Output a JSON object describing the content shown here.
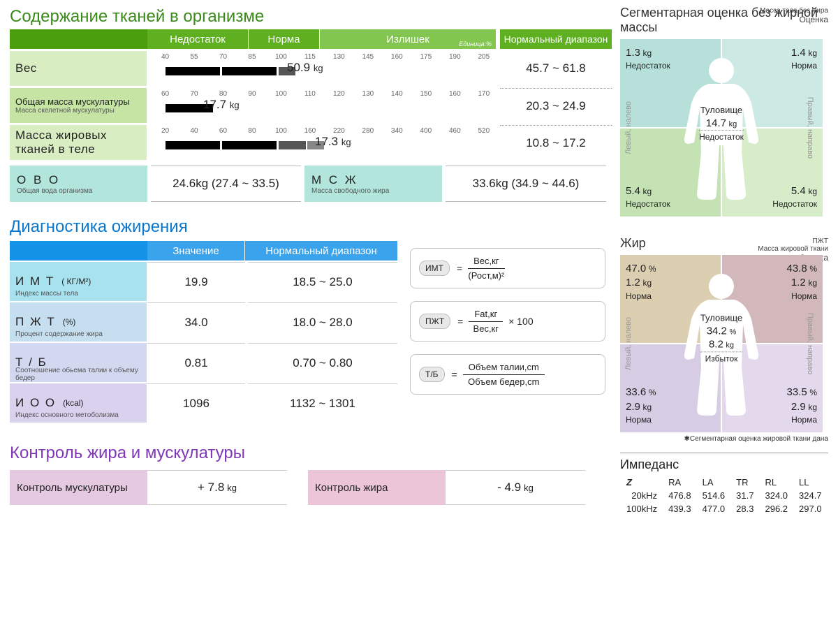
{
  "sec1": {
    "title": "Содержание тканей в организме",
    "hdr": {
      "deficit": "Недостаток",
      "norm": "Норма",
      "excess": "Излишек",
      "unit": "Единица:%",
      "range": "Нормальный диапазон"
    },
    "rows": [
      {
        "label": "Вес",
        "ticks": [
          "40",
          "55",
          "70",
          "85",
          "100",
          "115",
          "130",
          "145",
          "160",
          "175",
          "190",
          "205"
        ],
        "segs": [
          {
            "l": 0,
            "w": 16,
            "c": "#000"
          },
          {
            "l": 16.6,
            "w": 16,
            "c": "#000"
          },
          {
            "l": 33.2,
            "w": 5,
            "c": "#555"
          }
        ],
        "valPos": 40,
        "value": "50.9",
        "unit": "kg",
        "range": "45.7 ~ 61.8"
      },
      {
        "label": "Общая масса мускулатуры",
        "sublabel": "Масса скелетной мускулатуры",
        "ticks": [
          "60",
          "70",
          "80",
          "90",
          "100",
          "110",
          "120",
          "130",
          "140",
          "150",
          "160",
          "170"
        ],
        "segs": [
          {
            "l": 0,
            "w": 14,
            "c": "#000"
          }
        ],
        "valPos": 16,
        "value": "17.7",
        "unit": "kg",
        "range": "20.3 ~ 24.9"
      },
      {
        "label": "Масса жировых тканей в теле",
        "ticks": [
          "20",
          "40",
          "60",
          "80",
          "100",
          "160",
          "220",
          "280",
          "340",
          "400",
          "460",
          "520"
        ],
        "segs": [
          {
            "l": 0,
            "w": 16,
            "c": "#000"
          },
          {
            "l": 16.6,
            "w": 16,
            "c": "#000"
          },
          {
            "l": 33.2,
            "w": 8,
            "c": "#555"
          },
          {
            "l": 41.6,
            "w": 5,
            "c": "#888"
          }
        ],
        "valPos": 48,
        "value": "17.3",
        "unit": "kg",
        "range": "10.8 ~ 17.2"
      }
    ],
    "subs": [
      {
        "abbr": "О В О",
        "desc": "Общая вода организма",
        "value": "24.6kg (27.4 ~ 33.5)"
      },
      {
        "abbr": "М С Ж",
        "desc": "Масса свободного жира",
        "value": "33.6kg (34.9 ~ 44.6)"
      }
    ],
    "colors": {
      "label1": "#d8edc1",
      "label2": "#c6e5a5",
      "sub": "#b2e6dd"
    }
  },
  "sec2": {
    "title": "Диагностика ожирения",
    "hdr": {
      "v": "Значение",
      "r": "Нормальный диапазон"
    },
    "rows": [
      {
        "abbr": "И М Т",
        "unit": "( КГ/М²)",
        "desc": "Индекс массы тела",
        "v": "19.9",
        "r": "18.5 ~ 25.0",
        "bg": "#a8e2ef"
      },
      {
        "abbr": "П Ж Т",
        "unit": "(%)",
        "desc": "Процент содержание жира",
        "v": "34.0",
        "r": "18.0 ~ 28.0",
        "bg": "#c6dff0"
      },
      {
        "abbr": "Т / Б",
        "unit": "",
        "desc": "Соотношение обьема талии к объему бедер",
        "v": "0.81",
        "r": "0.70 ~ 0.80",
        "bg": "#d2d8f0"
      },
      {
        "abbr": "И О О",
        "unit": "(kcal)",
        "desc": "Индекс основного метоболизма",
        "v": "1096",
        "r": "1132 ~ 1301",
        "bg": "#d9d2ef"
      }
    ],
    "formulas": [
      {
        "lbl": "ИМТ",
        "top": "Вес,кг",
        "bot": "(Рост,м)²",
        "suffix": ""
      },
      {
        "lbl": "ПЖТ",
        "top": "Fat,кг",
        "bot": "Вес,кг",
        "suffix": "× 100"
      },
      {
        "lbl": "Т/Б",
        "top": "Объем талии,cm",
        "bot": "Объем бедер,cm",
        "suffix": ""
      }
    ]
  },
  "sec3": {
    "title": "Контроль жира и мускулатуры",
    "items": [
      {
        "label": "Контроль мускулатуры",
        "value": "+ 7.8",
        "unit": "kg",
        "bg": "#e4c9e0"
      },
      {
        "label": "Контроль жира",
        "value": "- 4.9",
        "unit": "kg",
        "bg": "#edc5d9"
      }
    ]
  },
  "right": {
    "seg1": {
      "title": "Сегментарная оценка без жирной массы",
      "sub1": "Масса тела без жира",
      "sub2": "Оценка",
      "sideL": "Левый, налево",
      "sideR": "Правый, направо",
      "center": {
        "t": "Туловище",
        "v": "14.7",
        "u": "kg",
        "l": "Недостаток"
      },
      "q": {
        "tl": {
          "v": "1.3",
          "u": "kg",
          "l": "Недостаток",
          "bg": "#b7e0da"
        },
        "tr": {
          "v": "1.4",
          "u": "kg",
          "l": "Норма",
          "bg": "#cde9e4"
        },
        "bl": {
          "v": "5.4",
          "u": "kg",
          "l": "Недостаток",
          "bg": "#c5e2b5"
        },
        "br": {
          "v": "5.4",
          "u": "kg",
          "l": "Недостаток",
          "bg": "#d7ecc9"
        }
      }
    },
    "seg2": {
      "title": "Жир",
      "sub1": "ПЖТ",
      "sub2": "Масса жировой ткани",
      "sub3": "Оценка",
      "sideL": "Левый, налево",
      "sideR": "Правый, направо",
      "center": {
        "t": "Туловище",
        "p": "34.2",
        "v": "8.2",
        "u": "kg",
        "l": "Избыток"
      },
      "q": {
        "tl": {
          "p": "47.0",
          "v": "1.2",
          "u": "kg",
          "l": "Норма",
          "bg": "#dcceb1"
        },
        "tr": {
          "p": "43.8",
          "v": "1.2",
          "u": "kg",
          "l": "Норма",
          "bg": "#d2b8bb"
        },
        "bl": {
          "p": "33.6",
          "v": "2.9",
          "u": "kg",
          "l": "Норма",
          "bg": "#d6cde4"
        },
        "br": {
          "p": "33.5",
          "v": "2.9",
          "u": "kg",
          "l": "Норма",
          "bg": "#e4d8ec"
        }
      },
      "footnote": "✱Сегментарная оценка жировой ткани дана"
    },
    "imped": {
      "title": "Импеданс",
      "cols": [
        "Z",
        "RA",
        "LA",
        "TR",
        "RL",
        "LL"
      ],
      "rows": [
        {
          "h": "20kHz",
          "v": [
            "476.8",
            "514.6",
            "31.7",
            "324.0",
            "324.7"
          ]
        },
        {
          "h": "100kHz",
          "v": [
            "439.3",
            "477.0",
            "28.3",
            "296.2",
            "297.0"
          ]
        }
      ]
    }
  }
}
